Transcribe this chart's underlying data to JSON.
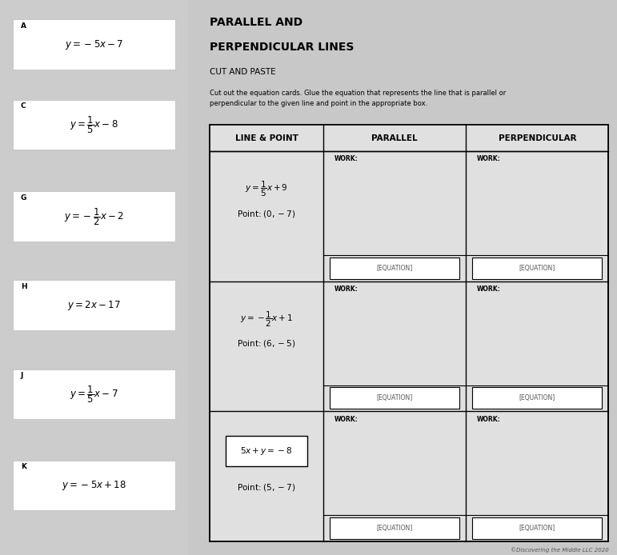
{
  "bg_color": "#E8A020",
  "page_bg": "#CCCCCC",
  "right_bg": "#C8C8C8",
  "white": "#FFFFFF",
  "black": "#000000",
  "title_line1": "PARALLEL AND",
  "title_line2": "PERPENDICULAR LINES",
  "title_line3": "CUT AND PASTE",
  "instruction": "Cut out the equation cards. Glue the equation that represents the line that is parallel or\nperpendicular to the given line and point in the appropriate box.",
  "left_cards": [
    {
      "letter": "A",
      "eq": "$y = -5x - 7$"
    },
    {
      "letter": "C",
      "eq": "$y = \\dfrac{1}{5}x - 8$"
    },
    {
      "letter": "G",
      "eq": "$y = -\\dfrac{1}{2}x - 2$"
    },
    {
      "letter": "H",
      "eq": "$y = 2x - 17$"
    },
    {
      "letter": "J",
      "eq": "$y = \\dfrac{1}{5}x - 7$"
    },
    {
      "letter": "K",
      "eq": "$y = -5x + 18$"
    }
  ],
  "table_headers": [
    "LINE & POINT",
    "PARALLEL",
    "PERPENDICULAR"
  ],
  "table_rows": [
    {
      "line": "$y = \\dfrac{1}{5}x + 9$",
      "point": "Point: $(0, -7)$",
      "boxed": false
    },
    {
      "line": "$y = -\\dfrac{1}{2}x + 1$",
      "point": "Point: $(6, -5)$",
      "boxed": false
    },
    {
      "line": "$5x + y = -8$",
      "point": "Point: $(5, -7)$",
      "boxed": true
    }
  ],
  "footer": "©Discovering the Middle LLC 2020"
}
